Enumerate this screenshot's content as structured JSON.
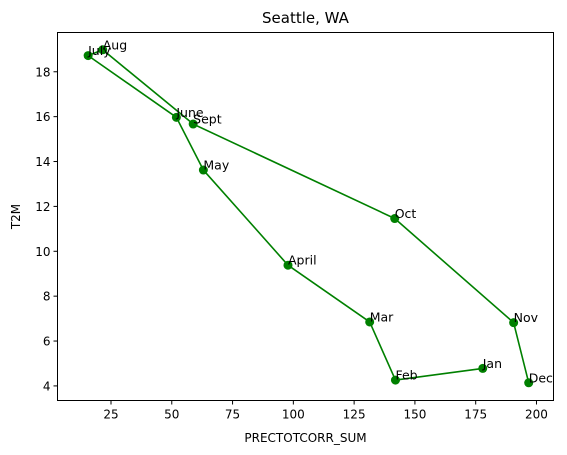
{
  "chart_data": {
    "type": "line",
    "title": "Seattle, WA",
    "xlabel": "PRECTOTCORR_SUM",
    "ylabel": "T2M",
    "xlim": [
      3.0,
      207.0
    ],
    "ylim": [
      3.35,
      19.75
    ],
    "x_ticks": [
      25,
      50,
      75,
      100,
      125,
      150,
      175,
      200
    ],
    "y_ticks": [
      4,
      6,
      8,
      10,
      12,
      14,
      16,
      18
    ],
    "grid": false,
    "line_color": "#008000",
    "marker_color": "#008000",
    "series": [
      {
        "points": [
          {
            "label": "Jan",
            "x": 177.9,
            "y": 4.78
          },
          {
            "label": "Feb",
            "x": 142.0,
            "y": 4.26
          },
          {
            "label": "Mar",
            "x": 131.4,
            "y": 6.85
          },
          {
            "label": "April",
            "x": 97.8,
            "y": 9.38
          },
          {
            "label": "May",
            "x": 63.0,
            "y": 13.62
          },
          {
            "label": "June",
            "x": 51.9,
            "y": 15.97
          },
          {
            "label": "July",
            "x": 15.6,
            "y": 18.72
          },
          {
            "label": "Aug",
            "x": 21.6,
            "y": 18.98
          },
          {
            "label": "Sept",
            "x": 58.8,
            "y": 15.67
          },
          {
            "label": "Oct",
            "x": 141.7,
            "y": 11.46
          },
          {
            "label": "Nov",
            "x": 190.6,
            "y": 6.82
          },
          {
            "label": "Dec",
            "x": 196.8,
            "y": 4.14
          }
        ]
      }
    ]
  }
}
